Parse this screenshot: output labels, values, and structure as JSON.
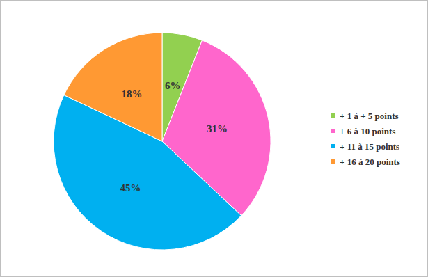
{
  "chart_data": {
    "type": "pie",
    "categories": [
      "+ 1 à + 5 points",
      "+ 6 à 10 points",
      "+ 11 à 15 points",
      "+ 16 à 20 points"
    ],
    "values": [
      6,
      31,
      45,
      18
    ],
    "value_labels": [
      "6%",
      "31%",
      "45%",
      "18%"
    ],
    "colors": [
      "#92d050",
      "#ff66cc",
      "#00b0f0",
      "#ff9933"
    ],
    "data_labels": true,
    "legend": "right"
  }
}
